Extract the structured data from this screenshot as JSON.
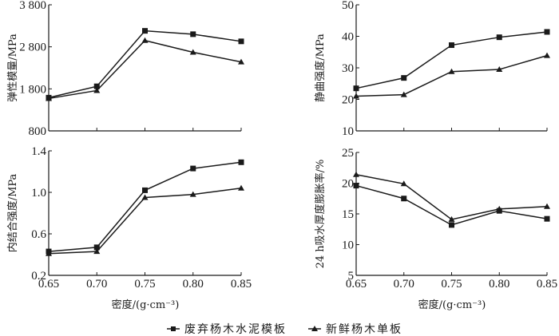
{
  "chart_data": [
    {
      "type": "line",
      "id": "elastic-modulus",
      "title": "",
      "xlabel": "",
      "ylabel": "弹性模量/MPa",
      "x": [
        0.65,
        0.7,
        0.75,
        0.8,
        0.85
      ],
      "xtick_labels": [],
      "ylim": [
        800,
        3800
      ],
      "yticks": [
        800,
        1800,
        2800,
        3800
      ],
      "ytick_labels": [
        "800",
        "1 800",
        "2 800",
        "3 800"
      ],
      "series": [
        {
          "name": "废弃杨木水泥模板",
          "marker": "square",
          "values": [
            1590,
            1860,
            3180,
            3100,
            2930
          ]
        },
        {
          "name": "新鲜杨木单板",
          "marker": "triangle",
          "values": [
            1570,
            1760,
            2950,
            2670,
            2440
          ]
        }
      ]
    },
    {
      "type": "line",
      "id": "static-bending-strength",
      "title": "",
      "xlabel": "",
      "ylabel": "静曲强度/MPa",
      "x": [
        0.65,
        0.7,
        0.75,
        0.8,
        0.85
      ],
      "xtick_labels": [],
      "ylim": [
        10,
        50
      ],
      "yticks": [
        10,
        20,
        30,
        40,
        50
      ],
      "ytick_labels": [
        "10",
        "20",
        "30",
        "40",
        "50"
      ],
      "series": [
        {
          "name": "废弃杨木水泥模板",
          "marker": "square",
          "values": [
            23.5,
            26.8,
            37.2,
            39.7,
            41.4
          ]
        },
        {
          "name": "新鲜杨木单板",
          "marker": "triangle",
          "values": [
            21.0,
            21.5,
            28.8,
            29.5,
            33.9
          ]
        }
      ]
    },
    {
      "type": "line",
      "id": "internal-bond-strength",
      "title": "",
      "xlabel": "密度/(g·cm⁻³)",
      "ylabel": "内结合强度/MPa",
      "x": [
        0.65,
        0.7,
        0.75,
        0.8,
        0.85
      ],
      "xtick_labels": [
        "0.65",
        "0.70",
        "0.75",
        "0.80",
        "0.85"
      ],
      "ylim": [
        0.2,
        1.4
      ],
      "yticks": [
        0.2,
        0.6,
        1.0,
        1.4
      ],
      "ytick_labels": [
        "0.2",
        "0.6",
        "1.0",
        "1.4"
      ],
      "series": [
        {
          "name": "废弃杨木水泥模板",
          "marker": "square",
          "values": [
            0.43,
            0.47,
            1.02,
            1.23,
            1.29
          ]
        },
        {
          "name": "新鲜杨木单板",
          "marker": "triangle",
          "values": [
            0.41,
            0.43,
            0.95,
            0.98,
            1.04
          ]
        }
      ]
    },
    {
      "type": "line",
      "id": "thickness-swelling",
      "title": "",
      "xlabel": "密度/(g·cm⁻³)",
      "ylabel": "24 h吸水厚度膨胀率/%",
      "x": [
        0.65,
        0.7,
        0.75,
        0.8,
        0.85
      ],
      "xtick_labels": [
        "0.65",
        "0.70",
        "0.75",
        "0.80",
        "0.85"
      ],
      "ylim": [
        5,
        25
      ],
      "yticks": [
        5,
        10,
        15,
        20,
        25
      ],
      "ytick_labels": [
        "5",
        "10",
        "15",
        "20",
        "25"
      ],
      "series": [
        {
          "name": "废弃杨木水泥模板",
          "marker": "square",
          "values": [
            19.6,
            17.5,
            13.2,
            15.5,
            14.2
          ]
        },
        {
          "name": "新鲜杨木单板",
          "marker": "triangle",
          "values": [
            21.4,
            19.9,
            14.1,
            15.8,
            16.2
          ]
        }
      ]
    }
  ],
  "legend": {
    "position": "bottom-center",
    "items": [
      {
        "label": "废弃杨木水泥模板",
        "marker": "square"
      },
      {
        "label": "新鲜杨木单板",
        "marker": "triangle"
      }
    ]
  },
  "colors": {
    "line": "#1a1a1a",
    "background": "#ffffff"
  }
}
